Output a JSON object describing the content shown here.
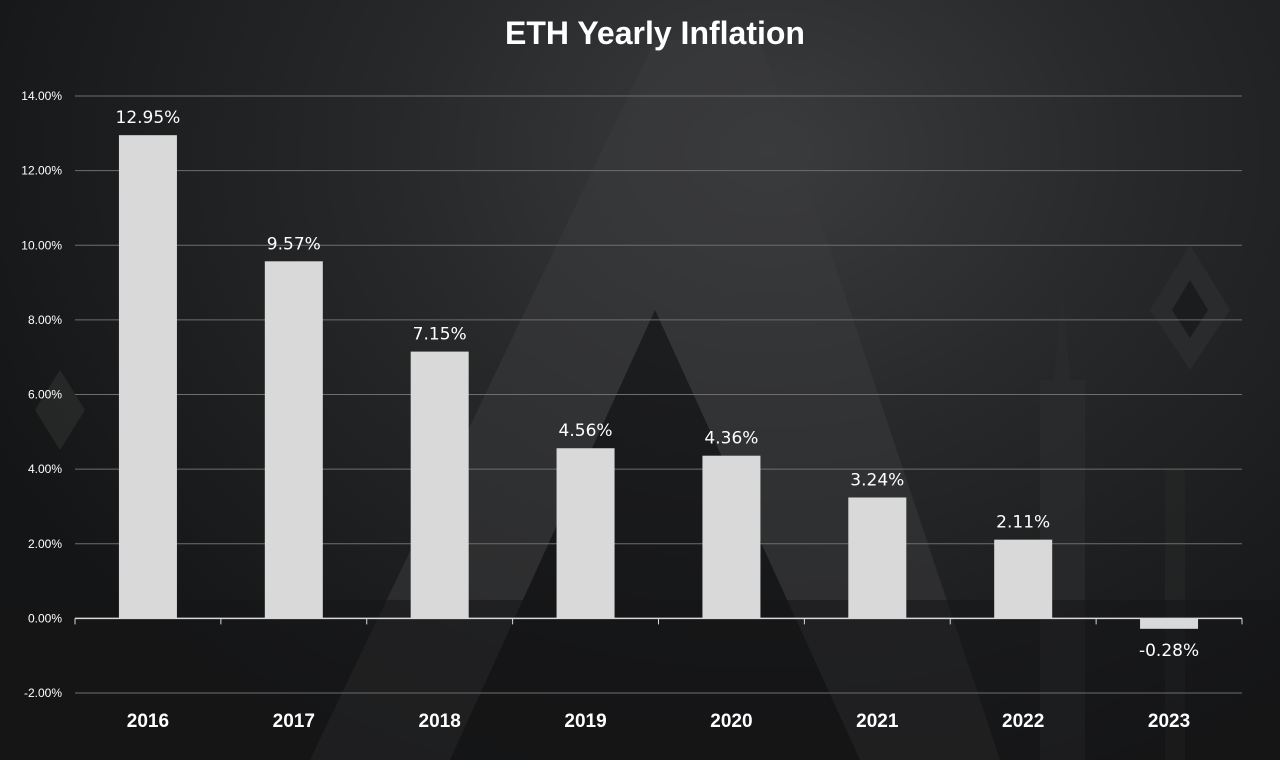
{
  "chart_data": {
    "type": "bar",
    "title": "ETH Yearly Inflation",
    "xlabel": "",
    "ylabel": "",
    "categories": [
      "2016",
      "2017",
      "2018",
      "2019",
      "2020",
      "2021",
      "2022",
      "2023"
    ],
    "values": [
      12.95,
      9.57,
      7.15,
      4.56,
      4.36,
      3.24,
      2.11,
      -0.28
    ],
    "data_labels": [
      "12.95%",
      "9.57%",
      "7.15%",
      "4.56%",
      "4.36%",
      "3.24%",
      "2.11%",
      "-0.28%"
    ],
    "ylim": [
      -2,
      14
    ],
    "yticks": [
      14,
      12,
      10,
      8,
      6,
      4,
      2,
      0,
      -2
    ],
    "ytick_labels": [
      "14.00%",
      "12.00%",
      "10.00%",
      "8.00%",
      "6.00%",
      "4.00%",
      "2.00%",
      "0.00%",
      "-2.00%"
    ],
    "grid": true,
    "legend": "none",
    "colors": {
      "bar": "#d9d9d9",
      "text": "#ffffff",
      "grid": "#6e6e6e",
      "axis": "#d9d9d9"
    }
  }
}
